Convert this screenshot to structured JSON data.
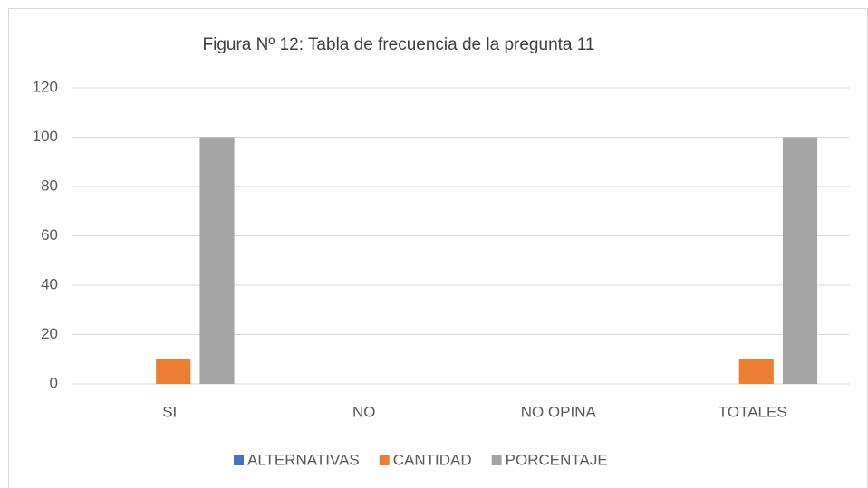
{
  "chart_data": {
    "type": "bar",
    "title": "Figura Nº 12: Tabla de frecuencia de la pregunta 11",
    "categories": [
      "SI",
      "NO",
      "NO OPINA",
      "TOTALES"
    ],
    "series": [
      {
        "name": "ALTERNATIVAS",
        "color": "#4472c4",
        "values": [
          0,
          0,
          0,
          0
        ]
      },
      {
        "name": "CANTIDAD",
        "color": "#ed7d31",
        "values": [
          10,
          0,
          0,
          10
        ]
      },
      {
        "name": "PORCENTAJE",
        "color": "#a5a5a5",
        "values": [
          100,
          0,
          0,
          100
        ]
      }
    ],
    "ylim": [
      0,
      120
    ],
    "yticks": [
      0,
      20,
      40,
      60,
      80,
      100,
      120
    ],
    "grid": true,
    "legend": "bottom"
  }
}
